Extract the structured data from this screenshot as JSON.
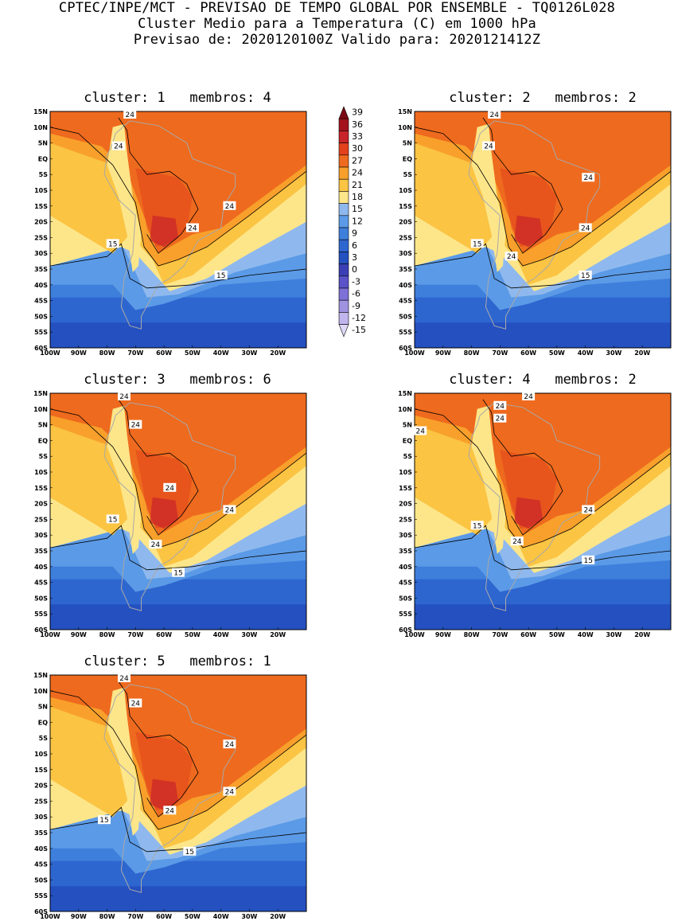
{
  "header": {
    "line1": "CPTEC/INPE/MCT - PREVISAO DE TEMPO GLOBAL POR ENSEMBLE - TQ0126L028",
    "line2": "Cluster Medio para a Temperatura (C) em 1000 hPa",
    "line3": "Previsao de: 2020120100Z   Valido para: 2020121412Z"
  },
  "axes": {
    "lat_labels": [
      "15N",
      "10N",
      "5N",
      "EQ",
      "5S",
      "10S",
      "15S",
      "20S",
      "25S",
      "30S",
      "35S",
      "40S",
      "45S",
      "50S",
      "55S",
      "60S"
    ],
    "lon_labels": [
      "100W",
      "90W",
      "80W",
      "70W",
      "60W",
      "50W",
      "40W",
      "30W",
      "20W"
    ]
  },
  "panels": [
    {
      "title": "cluster: 1   membros: 4",
      "contours": [
        "24",
        "24",
        "24",
        "24",
        "15",
        "15"
      ]
    },
    {
      "title": "cluster: 2   membros: 2",
      "contours": [
        "24",
        "24",
        "24",
        "24",
        "24",
        "15",
        "15"
      ]
    },
    {
      "title": "cluster: 3   membros: 6",
      "contours": [
        "24",
        "24",
        "24",
        "24",
        "24",
        "15",
        "15"
      ]
    },
    {
      "title": "cluster: 4   membros: 2",
      "contours": [
        "24",
        "24",
        "24",
        "24",
        "24",
        "24",
        "15",
        "15"
      ]
    },
    {
      "title": "cluster: 5   membros: 1",
      "contours": [
        "24",
        "24",
        "24",
        "24",
        "24",
        "15",
        "15"
      ]
    }
  ],
  "colorbar": {
    "labels": [
      "39",
      "36",
      "33",
      "30",
      "27",
      "24",
      "21",
      "18",
      "15",
      "12",
      "9",
      "6",
      "3",
      "0",
      "-3",
      "-6",
      "-9",
      "-12",
      "-15"
    ],
    "colors": [
      "#7a0a14",
      "#a3131c",
      "#c8242a",
      "#e2411c",
      "#ee6a1e",
      "#f8a02b",
      "#fbc443",
      "#fde68a",
      "#8fb9ee",
      "#5b9ae6",
      "#3e7fdc",
      "#2e66d0",
      "#2450c0",
      "#3a3fb5",
      "#5a52c8",
      "#7d70d6",
      "#9f92e0",
      "#c0b5ec",
      "#ded7f6"
    ]
  }
}
